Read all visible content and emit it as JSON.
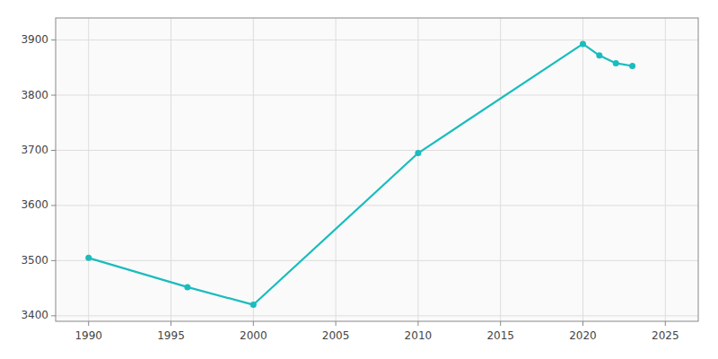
{
  "chart_data": {
    "type": "line",
    "x": [
      1990,
      1996,
      2000,
      2010,
      2020,
      2021,
      2022,
      2023
    ],
    "values": [
      3505,
      3452,
      3420,
      3695,
      3893,
      3872,
      3858,
      3853
    ],
    "color": "#1ABCBE",
    "marker": "circle",
    "xlim": [
      1988,
      2027
    ],
    "xticks": [
      1990,
      1995,
      2000,
      2005,
      2010,
      2015,
      2020,
      2025
    ],
    "ylim": [
      3390,
      3940
    ],
    "yticks": [
      3400,
      3500,
      3600,
      3700,
      3800,
      3900
    ],
    "grid": true
  }
}
